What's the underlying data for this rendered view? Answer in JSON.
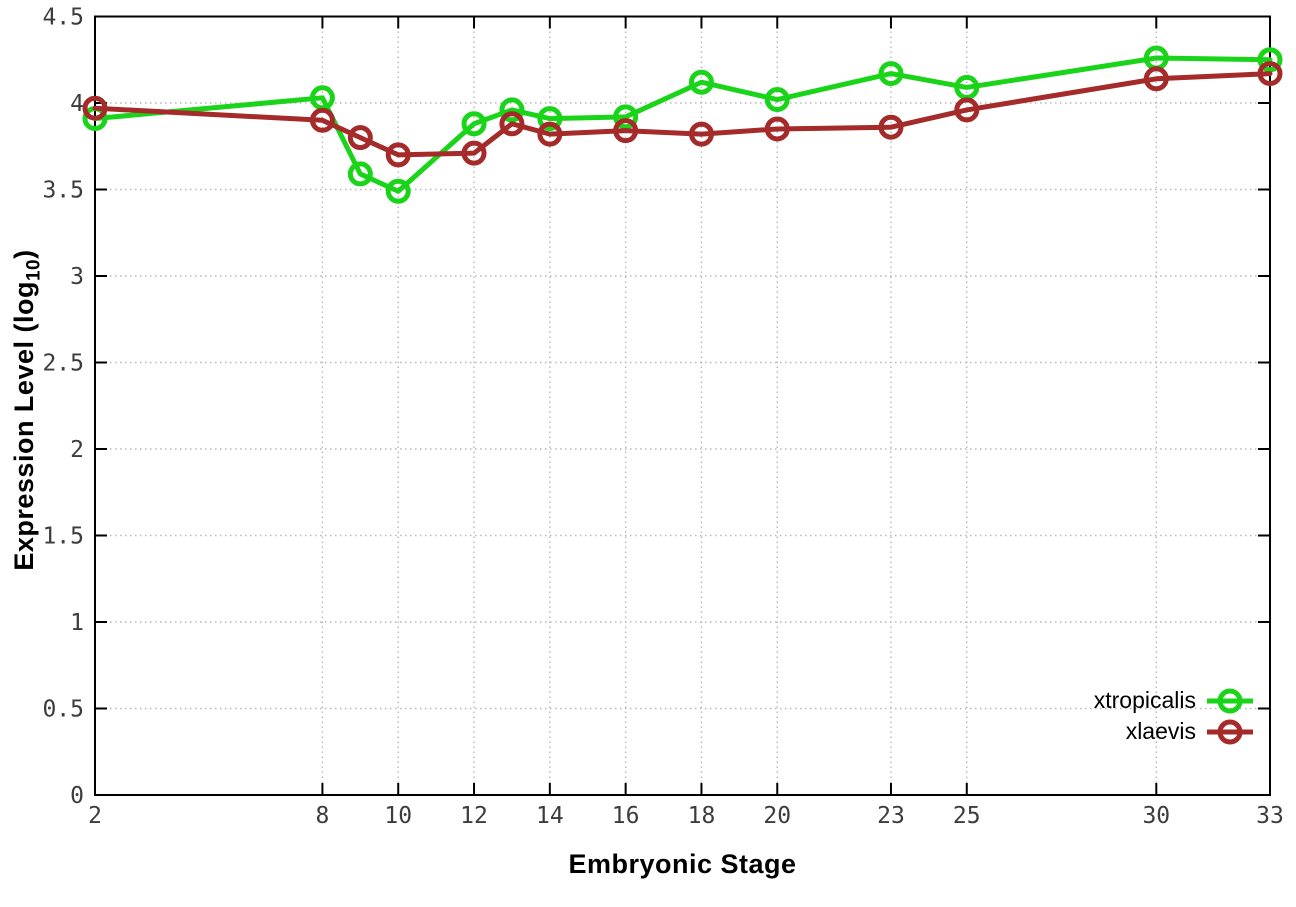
{
  "chart_data": {
    "type": "line",
    "title": "",
    "xlabel": "Embryonic Stage",
    "ylabel": "Expression Level (log10)",
    "ylabel_parts": {
      "prefix": "Expression Level (log",
      "subscript": "10",
      "suffix": ")"
    },
    "x": [
      2,
      8,
      9,
      10,
      12,
      13,
      14,
      16,
      18,
      20,
      23,
      25,
      30,
      33
    ],
    "xlim": [
      2,
      33
    ],
    "ylim": [
      0,
      4.5
    ],
    "xtick_values": [
      2,
      8,
      10,
      12,
      14,
      16,
      18,
      20,
      23,
      25,
      30,
      33
    ],
    "xtick_labels": [
      "2",
      "8",
      "10",
      "12",
      "14",
      "16",
      "18",
      "20",
      "23",
      "25",
      "30",
      "33"
    ],
    "ytick_values": [
      0,
      0.5,
      1,
      1.5,
      2,
      2.5,
      3,
      3.5,
      4,
      4.5
    ],
    "ytick_labels": [
      "0",
      "0.5",
      "1",
      "1.5",
      "2",
      "2.5",
      "3",
      "3.5",
      "4",
      "4.5"
    ],
    "grid": true,
    "legend_position": "inside-bottom-right",
    "series": [
      {
        "name": "xtropicalis",
        "color": "#19d419",
        "values": [
          3.91,
          4.03,
          3.59,
          3.49,
          3.88,
          3.96,
          3.91,
          3.92,
          4.12,
          4.02,
          4.17,
          4.09,
          4.26,
          4.25
        ]
      },
      {
        "name": "xlaevis",
        "color": "#a52a2a",
        "values": [
          3.97,
          3.9,
          3.8,
          3.7,
          3.71,
          3.88,
          3.82,
          3.84,
          3.82,
          3.85,
          3.86,
          3.96,
          4.14,
          4.17
        ]
      }
    ]
  },
  "colors": {
    "background": "#ffffff",
    "axis": "#000000",
    "grid": "#b8b8b8",
    "tick_label": "#3c3c3c"
  }
}
